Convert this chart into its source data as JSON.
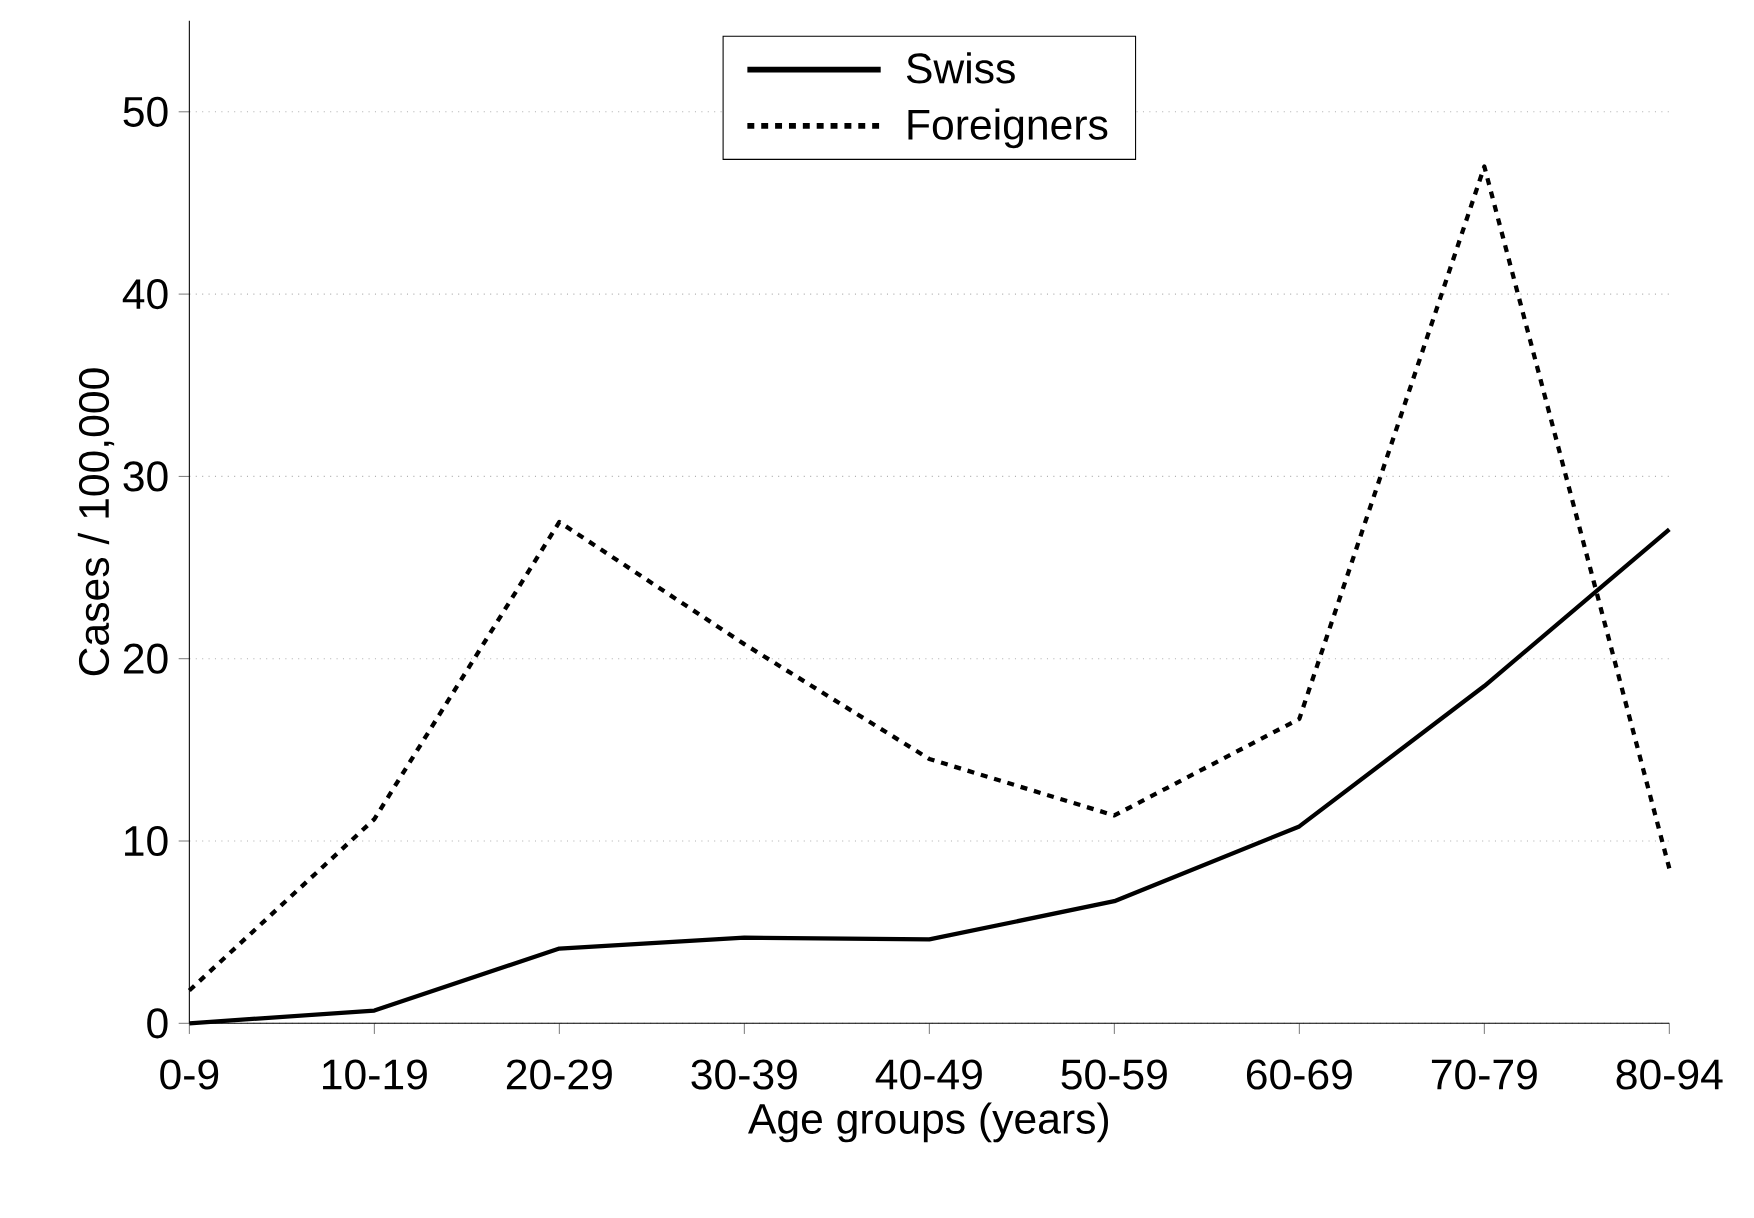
{
  "chart_data": {
    "type": "line",
    "xlabel": "Age groups (years)",
    "ylabel": "Cases  / 100,000",
    "categories": [
      "0-9",
      "10-19",
      "20-29",
      "30-39",
      "40-49",
      "50-59",
      "60-69",
      "70-79",
      "80-94"
    ],
    "series": [
      {
        "name": "Swiss",
        "color": "#000000",
        "line_style": "solid",
        "values": [
          0,
          0.7,
          4.1,
          4.7,
          4.6,
          6.7,
          10.8,
          18.5,
          27.1
        ]
      },
      {
        "name": "Foreigners",
        "color": "#000000",
        "line_style": "dotted",
        "values": [
          1.8,
          11.2,
          27.5,
          20.8,
          14.5,
          11.4,
          16.7,
          47,
          8.5
        ]
      }
    ],
    "ylim": [
      0,
      55
    ],
    "yticks": [
      0,
      10,
      20,
      30,
      40,
      50
    ],
    "grid": "y",
    "legend": "top",
    "marker": "none"
  }
}
